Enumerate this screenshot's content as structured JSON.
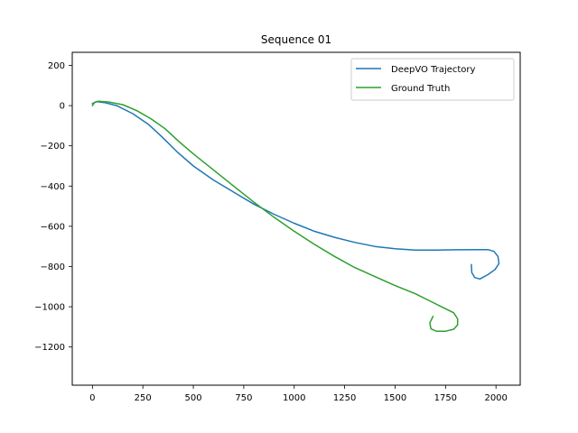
{
  "chart_data": {
    "type": "line",
    "title": "Sequence 01",
    "xlabel": "",
    "ylabel": "",
    "xlim": [
      -100,
      2120
    ],
    "ylim": [
      -1390,
      265
    ],
    "x_ticks": [
      0,
      250,
      500,
      750,
      1000,
      1250,
      1500,
      1750,
      2000
    ],
    "y_ticks": [
      200,
      0,
      -200,
      -400,
      -600,
      -800,
      -1000,
      -1200
    ],
    "grid": false,
    "legend_position": "top-right",
    "series": [
      {
        "name": "DeepVO Trajectory",
        "color": "#1f77b4",
        "points": [
          [
            0,
            10
          ],
          [
            20,
            20
          ],
          [
            60,
            15
          ],
          [
            120,
            0
          ],
          [
            200,
            -40
          ],
          [
            280,
            -95
          ],
          [
            350,
            -160
          ],
          [
            420,
            -230
          ],
          [
            500,
            -300
          ],
          [
            600,
            -370
          ],
          [
            700,
            -430
          ],
          [
            800,
            -490
          ],
          [
            900,
            -540
          ],
          [
            1000,
            -585
          ],
          [
            1100,
            -625
          ],
          [
            1200,
            -655
          ],
          [
            1300,
            -680
          ],
          [
            1400,
            -700
          ],
          [
            1500,
            -712
          ],
          [
            1600,
            -718
          ],
          [
            1700,
            -718
          ],
          [
            1800,
            -717
          ],
          [
            1900,
            -716
          ],
          [
            1960,
            -716
          ],
          [
            1990,
            -725
          ],
          [
            2010,
            -750
          ],
          [
            2015,
            -785
          ],
          [
            1995,
            -815
          ],
          [
            1960,
            -840
          ],
          [
            1920,
            -862
          ],
          [
            1895,
            -855
          ],
          [
            1880,
            -830
          ],
          [
            1878,
            -790
          ]
        ]
      },
      {
        "name": "Ground Truth",
        "color": "#2ca02c",
        "points": [
          [
            0,
            0
          ],
          [
            10,
            15
          ],
          [
            30,
            22
          ],
          [
            80,
            18
          ],
          [
            150,
            5
          ],
          [
            220,
            -25
          ],
          [
            290,
            -65
          ],
          [
            360,
            -115
          ],
          [
            430,
            -180
          ],
          [
            500,
            -240
          ],
          [
            600,
            -320
          ],
          [
            700,
            -400
          ],
          [
            800,
            -480
          ],
          [
            900,
            -555
          ],
          [
            1000,
            -625
          ],
          [
            1100,
            -690
          ],
          [
            1200,
            -750
          ],
          [
            1300,
            -805
          ],
          [
            1400,
            -850
          ],
          [
            1500,
            -895
          ],
          [
            1600,
            -935
          ],
          [
            1680,
            -975
          ],
          [
            1740,
            -1005
          ],
          [
            1790,
            -1030
          ],
          [
            1810,
            -1060
          ],
          [
            1810,
            -1090
          ],
          [
            1790,
            -1112
          ],
          [
            1750,
            -1122
          ],
          [
            1705,
            -1122
          ],
          [
            1678,
            -1110
          ],
          [
            1672,
            -1080
          ],
          [
            1688,
            -1048
          ]
        ]
      }
    ]
  }
}
